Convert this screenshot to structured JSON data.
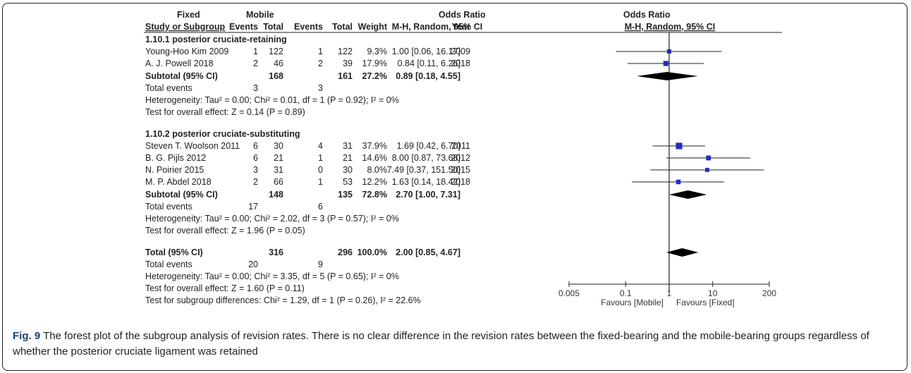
{
  "header": {
    "group_fixed": "Fixed",
    "group_mobile": "Mobile",
    "odds_ratio": "Odds Ratio",
    "odds_ratio_plot": "Odds Ratio",
    "study_col": "Study or Subgroup",
    "events": "Events",
    "total": "Total",
    "weight": "Weight",
    "method": "M-H, Random, 95% CI",
    "year": "Year",
    "method_plot": "M-H, Random, 95% CI"
  },
  "subgroups": [
    {
      "title": "1.10.1 posterior cruciate-retaining",
      "subtotal": {
        "label": "Subtotal (95% CI)",
        "total_fixed": "168",
        "total_mobile": "161",
        "weight": "27.2%",
        "ci_text": "0.89 [0.18, 4.55]"
      },
      "total_events": {
        "label": "Total events",
        "fixed": "3",
        "mobile": "3"
      },
      "heterogeneity": "Heterogeneity: Tau² = 0.00; Chi² = 0.01, df = 1 (P = 0.92); I² = 0%",
      "overall": "Test for overall effect: Z = 0.14 (P = 0.89)"
    },
    {
      "title": "1.10.2 posterior cruciate-substituting",
      "subtotal": {
        "label": "Subtotal (95% CI)",
        "total_fixed": "148",
        "total_mobile": "135",
        "weight": "72.8%",
        "ci_text": "2.70 [1.00, 7.31]"
      },
      "total_events": {
        "label": "Total events",
        "fixed": "17",
        "mobile": "6"
      },
      "heterogeneity": "Heterogeneity: Tau² = 0.00; Chi² = 2.02, df = 3 (P = 0.57); I² = 0%",
      "overall": "Test for overall effect: Z = 1.96 (P = 0.05)"
    }
  ],
  "overall_total": {
    "label": "Total (95% CI)",
    "total_fixed": "316",
    "total_mobile": "296",
    "weight": "100.0%",
    "ci_text": "2.00 [0.85, 4.67]",
    "events_label": "Total events",
    "events_fixed": "20",
    "events_mobile": "9",
    "heterogeneity": "Heterogeneity: Tau² = 0.00; Chi² = 3.35, df = 5 (P = 0.65); I² = 0%",
    "overall": "Test for overall effect: Z = 1.60 (P = 0.11)",
    "subgroup_diff": "Test for subgroup differences: Chi² = 1.29, df = 1 (P = 0.26), I² = 22.6%"
  },
  "axis": {
    "ticks": [
      "0.005",
      "0.1",
      "1",
      "10",
      "200"
    ],
    "favours_left": "Favours [Mobile]",
    "favours_right": "Favours [Fixed]"
  },
  "caption": {
    "label": "Fig. 9",
    "text": " The forest plot of the subgroup analysis of revision rates. There is no clear difference in the revision rates between the fixed-bearing and the mobile-bearing groups regardless of whether the posterior cruciate ligament was retained"
  },
  "chart_data": {
    "type": "forest",
    "scale": "log",
    "xlim": [
      0.005,
      200
    ],
    "reference_line": 1,
    "studies": [
      {
        "name": "Young-Hoo Kim 2009",
        "subgroup": 0,
        "fixed_events": 1,
        "fixed_total": 122,
        "mobile_events": 1,
        "mobile_total": 122,
        "weight": "9.3%",
        "or": 1.0,
        "lo": 0.06,
        "hi": 16.17,
        "ci_text": "1.00 [0.06, 16.17]",
        "year": "2009"
      },
      {
        "name": "A. J. Powell 2018",
        "subgroup": 0,
        "fixed_events": 2,
        "fixed_total": 46,
        "mobile_events": 2,
        "mobile_total": 39,
        "weight": "17.9%",
        "or": 0.84,
        "lo": 0.11,
        "hi": 6.26,
        "ci_text": "0.84 [0.11, 6.26]",
        "year": "2018"
      },
      {
        "name": "Steven T. Woolson 2011",
        "subgroup": 1,
        "fixed_events": 6,
        "fixed_total": 30,
        "mobile_events": 4,
        "mobile_total": 31,
        "weight": "37.9%",
        "or": 1.69,
        "lo": 0.42,
        "hi": 6.7,
        "ci_text": "1.69 [0.42, 6.70]",
        "year": "2011"
      },
      {
        "name": "B. G. Pijls 2012",
        "subgroup": 1,
        "fixed_events": 6,
        "fixed_total": 21,
        "mobile_events": 1,
        "mobile_total": 21,
        "weight": "14.6%",
        "or": 8.0,
        "lo": 0.87,
        "hi": 73.68,
        "ci_text": "8.00 [0.87, 73.68]",
        "year": "2012"
      },
      {
        "name": "N. Poirier 2015",
        "subgroup": 1,
        "fixed_events": 3,
        "fixed_total": 31,
        "mobile_events": 0,
        "mobile_total": 30,
        "weight": "8.0%",
        "or": 7.49,
        "lo": 0.37,
        "hi": 151.5,
        "ci_text": "7.49 [0.37, 151.50]",
        "year": "2015"
      },
      {
        "name": "M. P. Abdel 2018",
        "subgroup": 1,
        "fixed_events": 2,
        "fixed_total": 66,
        "mobile_events": 1,
        "mobile_total": 53,
        "weight": "12.2%",
        "or": 1.63,
        "lo": 0.14,
        "hi": 18.42,
        "ci_text": "1.63 [0.14, 18.42]",
        "year": "2018"
      }
    ],
    "pooled": [
      {
        "name": "Subtotal (95% CI)",
        "subgroup": 0,
        "or": 0.89,
        "lo": 0.18,
        "hi": 4.55
      },
      {
        "name": "Subtotal (95% CI)",
        "subgroup": 1,
        "or": 2.7,
        "lo": 1.0,
        "hi": 7.31
      },
      {
        "name": "Total (95% CI)",
        "subgroup": "all",
        "or": 2.0,
        "lo": 0.85,
        "hi": 4.67
      }
    ]
  }
}
